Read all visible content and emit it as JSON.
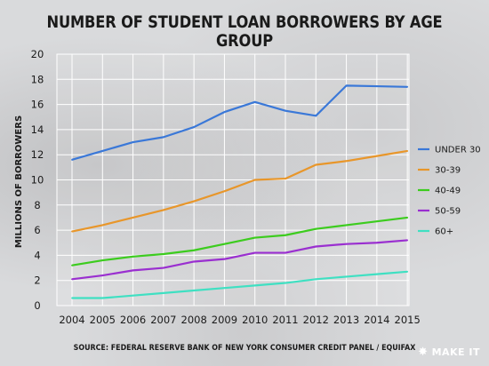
{
  "chart_data": {
    "type": "line",
    "title": "NUMBER OF STUDENT LOAN BORROWERS BY AGE GROUP",
    "ylabel": "MILLIONS OF BORROWERS",
    "xlabel": "",
    "x": [
      "2004",
      "2005",
      "2006",
      "2007",
      "2008",
      "2009",
      "2010",
      "2011",
      "2012",
      "2013",
      "2014",
      "2015"
    ],
    "yticks": [
      0,
      2,
      4,
      6,
      8,
      10,
      12,
      14,
      16,
      18,
      20
    ],
    "ylim": [
      0,
      20
    ],
    "grid": true,
    "legend": "right",
    "series": [
      {
        "name": "UNDER 30",
        "color": "#3a78d8",
        "values": [
          11.6,
          12.3,
          13.0,
          13.4,
          14.2,
          15.4,
          16.2,
          15.5,
          15.1,
          17.5,
          17.45,
          17.4
        ]
      },
      {
        "name": "30-39",
        "color": "#e8962a",
        "values": [
          5.9,
          6.4,
          7.0,
          7.6,
          8.3,
          9.1,
          10.0,
          10.1,
          11.2,
          11.5,
          11.9,
          12.3
        ]
      },
      {
        "name": "40-49",
        "color": "#3ccc1e",
        "values": [
          3.2,
          3.6,
          3.9,
          4.1,
          4.4,
          4.9,
          5.4,
          5.6,
          6.1,
          6.4,
          6.7,
          7.0
        ]
      },
      {
        "name": "50-59",
        "color": "#9a2fd0",
        "values": [
          2.1,
          2.4,
          2.8,
          3.0,
          3.5,
          3.7,
          4.2,
          4.2,
          4.7,
          4.9,
          5.0,
          5.2
        ]
      },
      {
        "name": "60+",
        "color": "#3fe0c2",
        "values": [
          0.6,
          0.6,
          0.8,
          1.0,
          1.2,
          1.4,
          1.6,
          1.8,
          2.1,
          2.3,
          2.5,
          2.7
        ]
      }
    ]
  },
  "source": "SOURCE: FEDERAL RESERVE BANK OF NEW YORK CONSUMER CREDIT PANEL / EQUIFAX",
  "brand": {
    "label": "MAKE IT",
    "icon": "peacock-icon"
  }
}
